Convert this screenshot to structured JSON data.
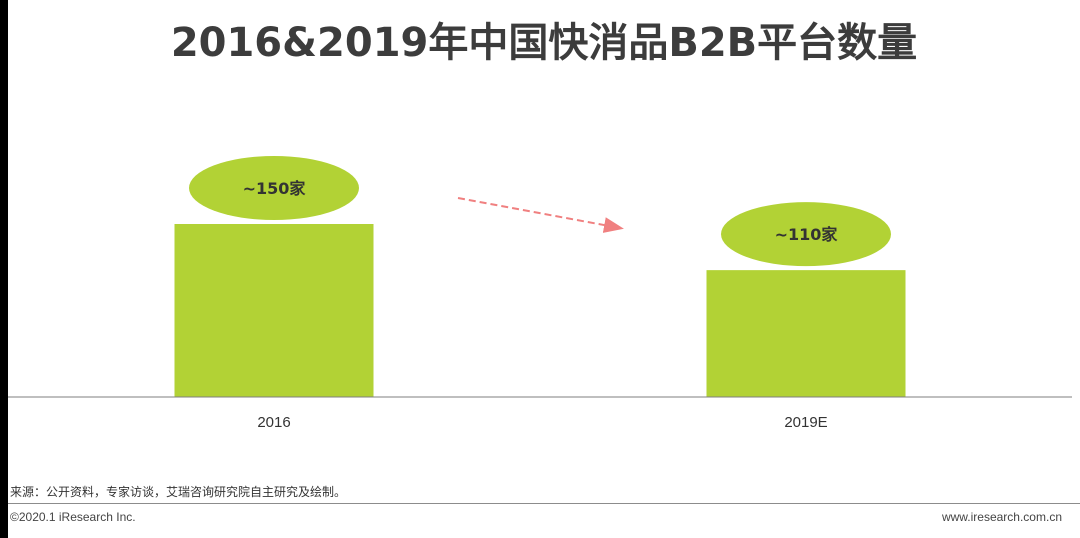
{
  "title": "2016&2019年中国快消品B2B平台数量",
  "chart_data": {
    "type": "bar",
    "categories": [
      "2016",
      "2019E"
    ],
    "values": [
      150,
      110
    ],
    "data_labels": [
      "~150家",
      "~110家"
    ],
    "trend": "decrease",
    "colors": {
      "bar": "#b2d235",
      "label_ellipse": "#b2d235",
      "arrow": "#f08080",
      "axis": "#7f7f7f"
    }
  },
  "footer": {
    "source": "来源：公开资料，专家访谈，艾瑞咨询研究院自主研究及绘制。",
    "copyright": "©2020.1 iResearch Inc.",
    "website": "www.iresearch.com.cn"
  }
}
